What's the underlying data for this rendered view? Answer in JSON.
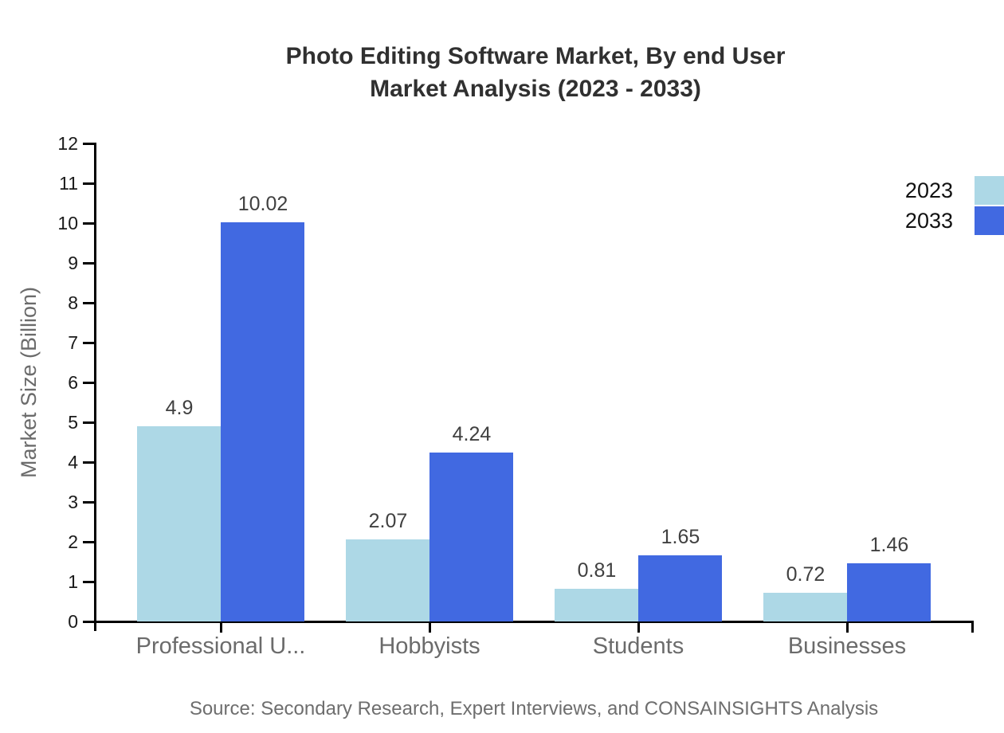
{
  "title": {
    "line1": "Photo Editing Software Market, By end User",
    "line2": "Market Analysis (2023 - 2033)"
  },
  "source_note": "Source: Secondary Research, Expert Interviews, and CONSAINSIGHTS Analysis",
  "chart_data": {
    "type": "bar",
    "title": "Photo Editing Software Market, By end User Market Analysis (2023 - 2033)",
    "categories": [
      "Professional U...",
      "Hobbyists",
      "Students",
      "Businesses"
    ],
    "series": [
      {
        "name": "2023",
        "color": "#ADD8E6",
        "values": [
          4.9,
          2.07,
          0.81,
          0.72
        ]
      },
      {
        "name": "2033",
        "color": "#4169E1",
        "values": [
          10.02,
          4.24,
          1.65,
          1.46
        ]
      }
    ],
    "value_labels": {
      "2023": [
        "4.9",
        "2.07",
        "0.81",
        "0.72"
      ],
      "2033": [
        "10.02",
        "4.24",
        "1.65",
        "1.46"
      ]
    },
    "xlabel": "",
    "ylabel": "Market Size (Billion)",
    "ylim": [
      0,
      12
    ],
    "yticks": [
      0,
      1,
      2,
      3,
      4,
      5,
      6,
      7,
      8,
      9,
      10,
      11,
      12
    ],
    "grid": false,
    "legend_position": "top-right",
    "legend": [
      "2023",
      "2033"
    ],
    "colors": {
      "series_2023": "#ADD8E6",
      "series_2033": "#4169E1",
      "axis": "#000000"
    }
  }
}
